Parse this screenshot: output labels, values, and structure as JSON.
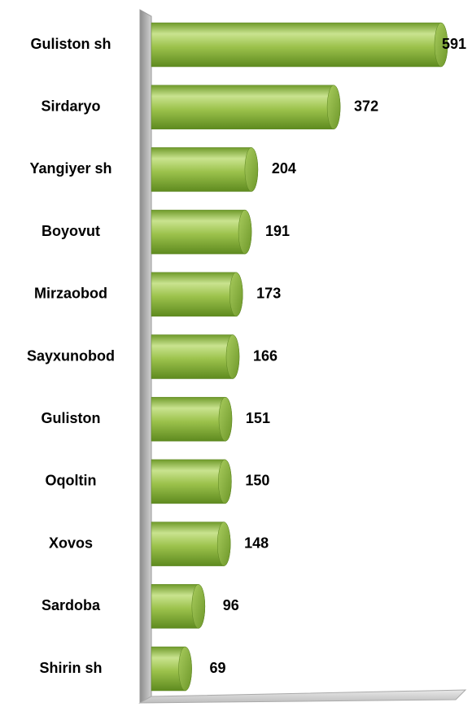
{
  "chart_data": {
    "type": "bar",
    "orientation": "horizontal",
    "categories": [
      "Guliston sh",
      "Sirdaryo",
      "Yangiyer sh",
      "Boyovut",
      "Mirzaobod",
      "Sayxunobod",
      "Guliston",
      "Oqoltin",
      "Xovos",
      "Sardoba",
      "Shirin sh"
    ],
    "values": [
      591,
      372,
      204,
      191,
      173,
      166,
      151,
      150,
      148,
      96,
      69
    ],
    "color": "#9bc24a"
  }
}
